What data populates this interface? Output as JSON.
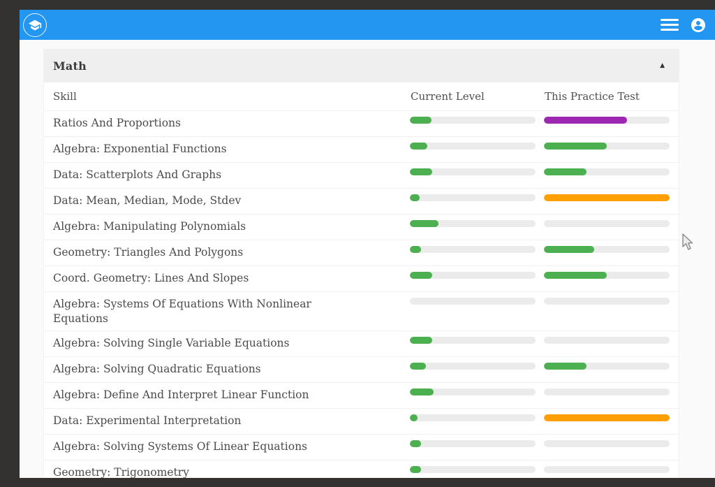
{
  "appbar": {
    "color": "#2296f0",
    "logo_icon": "graduation-cap-icon",
    "menu_icon": "hamburger-menu-icon",
    "account_icon": "account-circle-icon"
  },
  "section": {
    "title": "Math",
    "collapse_icon": "caret-up",
    "collapse_glyph": "▲"
  },
  "table": {
    "columns": [
      "Skill",
      "Current Level",
      "This Practice Test"
    ],
    "colors": {
      "green": "#4caf50",
      "purple": "#9c27b0",
      "orange": "#ffa000",
      "track": "#ebebeb"
    },
    "rows": [
      {
        "skill": "Ratios And Proportions",
        "current": {
          "pct": 17,
          "color": "green"
        },
        "practice": {
          "pct": 66,
          "color": "purple"
        }
      },
      {
        "skill": "Algebra: Exponential Functions",
        "current": {
          "pct": 14,
          "color": "green"
        },
        "practice": {
          "pct": 50,
          "color": "green"
        }
      },
      {
        "skill": "Data: Scatterplots And Graphs",
        "current": {
          "pct": 18,
          "color": "green"
        },
        "practice": {
          "pct": 34,
          "color": "green"
        }
      },
      {
        "skill": "Data: Mean, Median, Mode, Stdev",
        "current": {
          "pct": 8,
          "color": "green"
        },
        "practice": {
          "pct": 100,
          "color": "orange"
        }
      },
      {
        "skill": "Algebra: Manipulating Polynomials",
        "current": {
          "pct": 23,
          "color": "green"
        },
        "practice": {
          "pct": 0
        }
      },
      {
        "skill": "Geometry: Triangles And Polygons",
        "current": {
          "pct": 9,
          "color": "green"
        },
        "practice": {
          "pct": 40,
          "color": "green"
        }
      },
      {
        "skill": "Coord. Geometry: Lines And Slopes",
        "current": {
          "pct": 18,
          "color": "green"
        },
        "practice": {
          "pct": 50,
          "color": "green"
        }
      },
      {
        "skill": "Algebra: Systems Of Equations With Nonlinear Equations",
        "current": {
          "pct": 0
        },
        "practice": {
          "pct": 0
        }
      },
      {
        "skill": "Algebra: Solving Single Variable Equations",
        "current": {
          "pct": 18,
          "color": "green"
        },
        "practice": {
          "pct": 0
        }
      },
      {
        "skill": "Algebra: Solving Quadratic Equations",
        "current": {
          "pct": 13,
          "color": "green"
        },
        "practice": {
          "pct": 34,
          "color": "green"
        }
      },
      {
        "skill": "Algebra: Define And Interpret Linear Function",
        "current": {
          "pct": 19,
          "color": "green"
        },
        "practice": {
          "pct": 0
        }
      },
      {
        "skill": "Data: Experimental Interpretation",
        "current": {
          "pct": 6,
          "color": "green"
        },
        "practice": {
          "pct": 100,
          "color": "orange"
        }
      },
      {
        "skill": "Algebra: Solving Systems Of Linear Equations",
        "current": {
          "pct": 9,
          "color": "green"
        },
        "practice": {
          "pct": 0
        }
      },
      {
        "skill": "Geometry: Trigonometry",
        "current": {
          "pct": 9,
          "color": "green"
        },
        "practice": {
          "pct": 0
        }
      }
    ]
  }
}
